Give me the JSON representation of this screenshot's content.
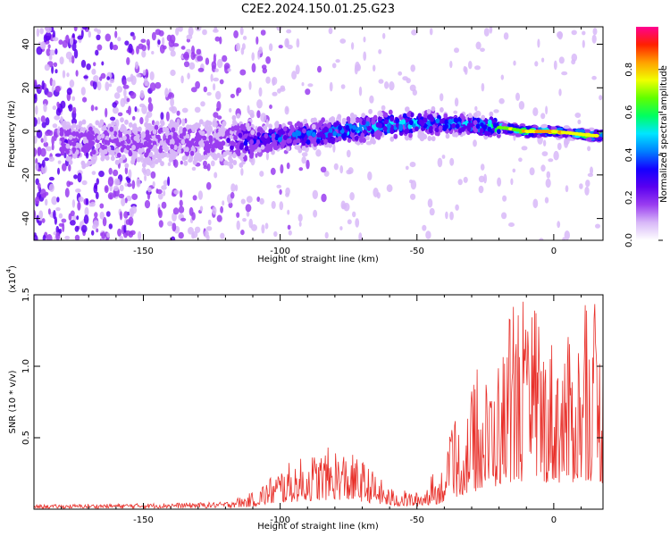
{
  "title": "C2E2.2024.150.01.25.G23",
  "chart_data": [
    {
      "type": "heatmap",
      "xlabel": "Height of straight line (km)",
      "ylabel": "Frequency (Hz)",
      "xlim": [
        -190,
        18
      ],
      "ylim": [
        -50,
        48
      ],
      "xticks": [
        -150,
        -100,
        -50,
        0
      ],
      "yticks": [
        -40,
        -20,
        0,
        20,
        40
      ],
      "colorbar": {
        "label": "Normalized spectral amplitude",
        "range": [
          0.0,
          1.0
        ],
        "ticks": [
          "0.0",
          "0.2",
          "0.4",
          "0.6",
          "0.8"
        ],
        "colors": [
          "#ffffff",
          "#d8b8f8",
          "#9a3df0",
          "#5a00f0",
          "#1400ff",
          "#0080ff",
          "#00e6ff",
          "#00ff60",
          "#60ff00",
          "#f0ff00",
          "#ffa000",
          "#ff2000",
          "#ff0090"
        ]
      },
      "ridge": {
        "description_values": [
          {
            "x": -120,
            "y": -5,
            "amp": 0.25
          },
          {
            "x": -100,
            "y": -3,
            "amp": 0.45
          },
          {
            "x": -80,
            "y": 0,
            "amp": 0.5
          },
          {
            "x": -60,
            "y": 3,
            "amp": 0.55
          },
          {
            "x": -45,
            "y": 4,
            "amp": 0.5
          },
          {
            "x": -30,
            "y": 3,
            "amp": 0.55
          },
          {
            "x": -20,
            "y": 2,
            "amp": 0.7
          },
          {
            "x": -10,
            "y": 0,
            "amp": 0.85
          },
          {
            "x": 0,
            "y": 0,
            "amp": 0.85
          },
          {
            "x": 15,
            "y": -2,
            "amp": 0.8
          }
        ]
      }
    },
    {
      "type": "line",
      "xlabel": "Height of straight line (km)",
      "ylabel": "SNR (10 * v/v)",
      "yscale_label": "(x10",
      "yscale_exp": "4",
      "xlim": [
        -190,
        18
      ],
      "ylim": [
        0,
        1.5
      ],
      "xticks": [
        -150,
        -100,
        -50,
        0
      ],
      "yticks": [
        "0.5",
        "1.0",
        "1.5"
      ],
      "series": [
        {
          "color": "#e8302a",
          "envelope": [
            {
              "x": -190,
              "y": 0.03
            },
            {
              "x": -150,
              "y": 0.04
            },
            {
              "x": -120,
              "y": 0.05
            },
            {
              "x": -110,
              "y": 0.12
            },
            {
              "x": -100,
              "y": 0.3
            },
            {
              "x": -90,
              "y": 0.38
            },
            {
              "x": -80,
              "y": 0.45
            },
            {
              "x": -70,
              "y": 0.35
            },
            {
              "x": -60,
              "y": 0.15
            },
            {
              "x": -50,
              "y": 0.12
            },
            {
              "x": -42,
              "y": 0.25
            },
            {
              "x": -35,
              "y": 0.6
            },
            {
              "x": -28,
              "y": 0.85
            },
            {
              "x": -22,
              "y": 1.0
            },
            {
              "x": -15,
              "y": 1.3
            },
            {
              "x": -5,
              "y": 1.25
            },
            {
              "x": 5,
              "y": 1.2
            },
            {
              "x": 12,
              "y": 1.35
            },
            {
              "x": 18,
              "y": 1.2
            }
          ]
        }
      ]
    }
  ]
}
